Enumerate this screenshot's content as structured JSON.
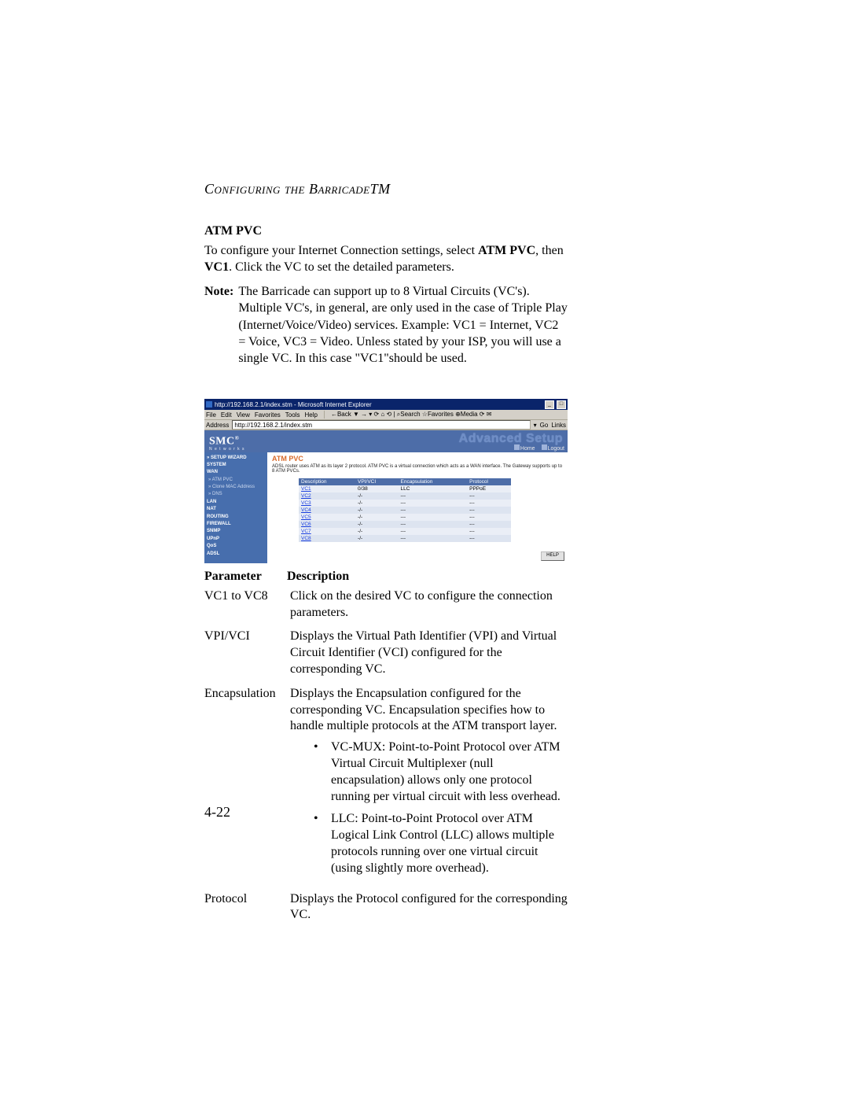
{
  "runningHead": "Configuring the BarricadeTM",
  "section": {
    "heading": "ATM PVC",
    "para1_a": "To configure your Internet Connection settings, select ",
    "para1_b": "ATM PVC",
    "para1_c": ", then ",
    "para1_d": "VC1",
    "para1_e": ". Click the VC to set the detailed parameters.",
    "note_label": "Note:",
    "note_text": "The Barricade can support up to 8 Virtual Circuits (VC's). Multiple VC's, in general, are only used in the case of Triple Play (Internet/Voice/Video) services. Example: VC1 = Internet, VC2 = Voice, VC3 = Video. Unless stated by your ISP, you will use a single VC. In this case \"VC1\"should be used."
  },
  "screenshot": {
    "window_title": "http://192.168.2.1/index.stm - Microsoft Internet Explorer",
    "menus": [
      "File",
      "Edit",
      "View",
      "Favorites",
      "Tools",
      "Help"
    ],
    "toolbar_text": "←Back ▼ → ▾ ⟳ ⌂ ⟲ | ⌕Search  ☆Favorites  ⊕Media ⟳ ✉",
    "address_label": "Address",
    "address_value": "http://192.168.2.1/index.stm",
    "go_label": "Go",
    "links_label": "Links",
    "logo": "SMC",
    "logo_reg": "®",
    "logo_sub": "N e t w o r k s",
    "adv": "Advanced Setup",
    "top_links": {
      "home": "Home",
      "logout": "Logout"
    },
    "sidebar": [
      {
        "label": "» SETUP WIZARD",
        "cls": "bold"
      },
      {
        "label": "SYSTEM",
        "cls": "bold"
      },
      {
        "label": "WAN",
        "cls": "bold"
      },
      {
        "label": "» ATM PVC",
        "cls": "sub"
      },
      {
        "label": "» Clone MAC Address",
        "cls": "sub"
      },
      {
        "label": "» DNS",
        "cls": "sub"
      },
      {
        "label": "LAN",
        "cls": "bold"
      },
      {
        "label": "NAT",
        "cls": "bold"
      },
      {
        "label": "ROUTING",
        "cls": "bold"
      },
      {
        "label": "FIREWALL",
        "cls": "bold"
      },
      {
        "label": "SNMP",
        "cls": "bold"
      },
      {
        "label": "UPnP",
        "cls": "bold"
      },
      {
        "label": "QoS",
        "cls": "bold"
      },
      {
        "label": "ADSL",
        "cls": "bold"
      }
    ],
    "pane_title": "ATM PVC",
    "pane_desc": "ADSL router uses ATM as its layer 2 protocol. ATM PVC is a virtual connection which acts as a WAN interface. The Gateway supports up to 8 ATM PVCs.",
    "table": {
      "columns": [
        "Description",
        "VPI/VCI",
        "Encapsulation",
        "Protocol"
      ],
      "rows": [
        [
          "VC1",
          "0/38",
          "LLC",
          "PPPoE"
        ],
        [
          "VC2",
          "-/-",
          "---",
          "---"
        ],
        [
          "VC3",
          "-/-",
          "---",
          "---"
        ],
        [
          "VC4",
          "-/-",
          "---",
          "---"
        ],
        [
          "VC5",
          "-/-",
          "---",
          "---"
        ],
        [
          "VC6",
          "-/-",
          "---",
          "---"
        ],
        [
          "VC7",
          "-/-",
          "---",
          "---"
        ],
        [
          "VC8",
          "-/-",
          "---",
          "---"
        ]
      ],
      "header_bg": "#4d6da8",
      "row_odd_bg": "#eaeef6",
      "row_even_bg": "#dde4f0",
      "link_color": "#1a3fe0"
    },
    "help_btn": "HELP"
  },
  "param_table": {
    "head_param": "Parameter",
    "head_desc": "Description",
    "rows": [
      {
        "p": "VC1 to VC8",
        "d": "Click on the desired VC to configure the connection parameters."
      },
      {
        "p": "VPI/VCI",
        "d": "Displays the Virtual Path Identifier (VPI) and Virtual Circuit Identifier (VCI) configured for the corresponding VC."
      },
      {
        "p": "Encapsulation",
        "d": "Displays the Encapsulation configured for the corresponding VC. Encapsulation specifies how to handle multiple protocols at the ATM transport layer.",
        "bullets": [
          "VC-MUX: Point-to-Point Protocol over ATM Virtual Circuit Multiplexer (null encapsulation) allows only one protocol running per virtual circuit with less overhead.",
          "LLC: Point-to-Point Protocol over ATM Logical Link Control (LLC) allows multiple protocols running over one virtual circuit (using slightly more overhead)."
        ]
      },
      {
        "p": "Protocol",
        "d": "Displays the Protocol configured for the corresponding VC."
      }
    ]
  },
  "page_number": "4-22",
  "colors": {
    "banner": "#4d6da8",
    "sidebar": "#476ead",
    "titlebar": "#0a246a",
    "chrome": "#d4d0c8",
    "pane_title": "#d86b2b"
  }
}
